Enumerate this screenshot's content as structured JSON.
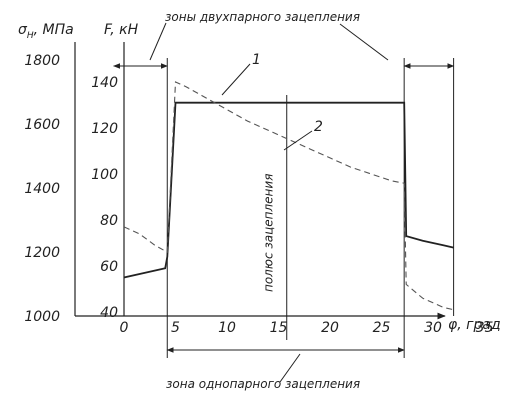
{
  "chart_data": {
    "type": "line",
    "axes": {
      "sigma": {
        "label": "σ",
        "subscript": "H",
        "unit": ", МПа",
        "ticks": [
          "1800",
          "1600",
          "1400",
          "1200",
          "1000"
        ],
        "range": [
          1000,
          1800
        ]
      },
      "force": {
        "label": "F, кН",
        "ticks": [
          "140",
          "120",
          "100",
          "80",
          "60",
          "40"
        ],
        "range": [
          40,
          140
        ]
      },
      "phi": {
        "label": "φ, град",
        "ticks": [
          "0",
          "5",
          "10",
          "15",
          "20",
          "25",
          "30",
          "35"
        ],
        "range": [
          0,
          35
        ]
      }
    },
    "annotations": {
      "double_zone": "зоны двухпарного зацепления",
      "single_zone": "зона однопарного зацепления",
      "pole": "полюс зацепления"
    },
    "series": [
      {
        "name": "1",
        "axis": "force",
        "style": "solid",
        "points": [
          [
            0,
            55
          ],
          [
            2,
            57
          ],
          [
            4,
            59
          ],
          [
            4.2,
            64
          ],
          [
            5,
            131
          ],
          [
            27.2,
            131
          ],
          [
            27.4,
            73
          ],
          [
            29,
            71
          ],
          [
            31,
            69
          ],
          [
            32,
            68
          ]
        ]
      },
      {
        "name": "2",
        "axis": "force",
        "style": "dashed",
        "points": [
          [
            0,
            77
          ],
          [
            1.5,
            74
          ],
          [
            3,
            69
          ],
          [
            4.2,
            66
          ],
          [
            5,
            140
          ],
          [
            6,
            138
          ],
          [
            8,
            133
          ],
          [
            10,
            128
          ],
          [
            12,
            123
          ],
          [
            14,
            119
          ],
          [
            16,
            115
          ],
          [
            18,
            111
          ],
          [
            20,
            107
          ],
          [
            22,
            103
          ],
          [
            24,
            100
          ],
          [
            26,
            97
          ],
          [
            27.2,
            96
          ],
          [
            27.4,
            52
          ],
          [
            29,
            46
          ],
          [
            31,
            42
          ],
          [
            32,
            41
          ]
        ]
      }
    ],
    "markers": {
      "double_zone_left": [
        -1,
        4.2
      ],
      "single_zone": [
        4.2,
        27.2
      ],
      "double_zone_right": [
        27.2,
        32
      ],
      "pole": 15.8
    }
  }
}
